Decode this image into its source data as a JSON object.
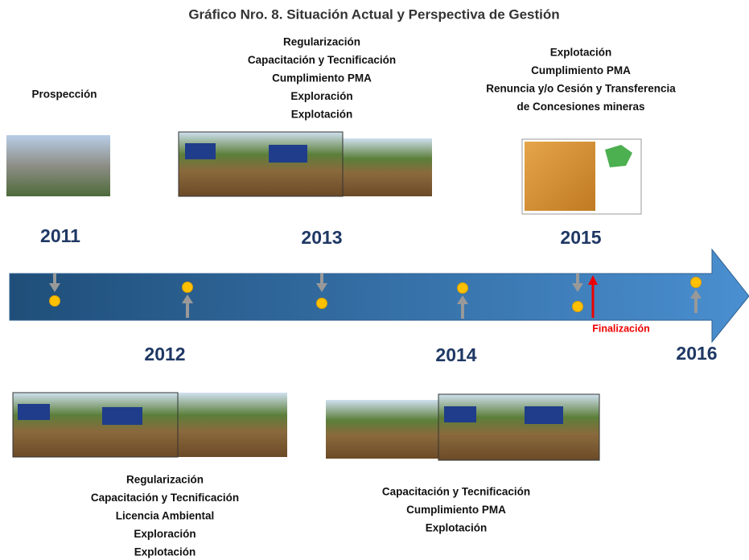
{
  "title": "Gráfico Nro. 8. Situación Actual y Perspectiva de Gestión",
  "periods": [
    {
      "year": "2011",
      "activities": [
        "Prospección"
      ]
    },
    {
      "year": "2012",
      "activities": [
        "Regularización",
        "Capacitación y Tecnificación",
        "Licencia Ambiental",
        "Exploración",
        "Explotación"
      ]
    },
    {
      "year": "2013",
      "activities": [
        "Regularización",
        "Capacitación y Tecnificación",
        "Cumplimiento PMA",
        "Exploración",
        "Explotación"
      ]
    },
    {
      "year": "2014",
      "activities": [
        "Capacitación y Tecnificación",
        "Cumplimiento PMA",
        "Explotación"
      ]
    },
    {
      "year": "2015",
      "activities": [
        "Explotación",
        "Cumplimiento PMA",
        "Renuncia y/o Cesión y Transferencia",
        "de Concesiones mineras"
      ]
    },
    {
      "year": "2016",
      "activities": []
    }
  ],
  "finalization": "Finalización"
}
